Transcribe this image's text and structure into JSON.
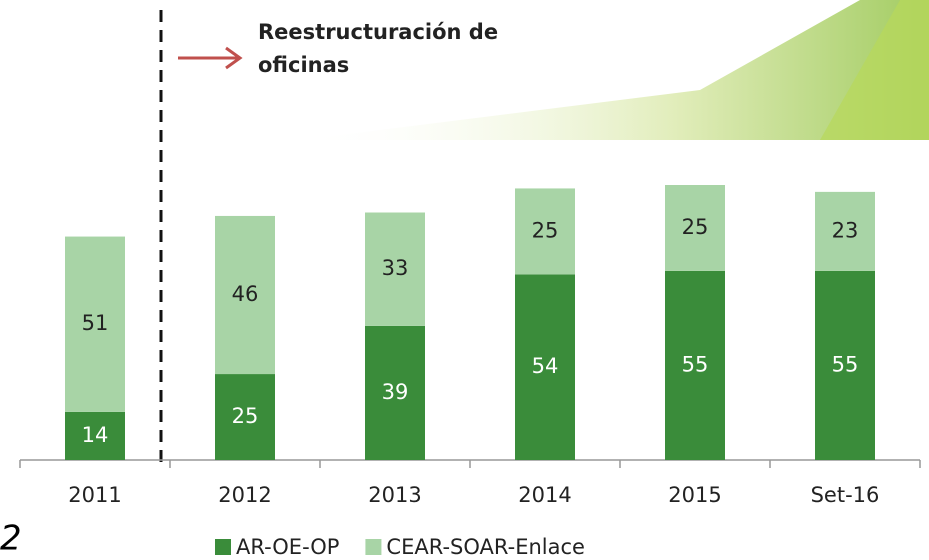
{
  "chart_data": {
    "type": "stacked_bar",
    "annotation": "Reestructuración de oficinas",
    "page_number": "2",
    "categories": [
      "2011",
      "2012",
      "2013",
      "2014",
      "2015",
      "Set-16"
    ],
    "series": [
      {
        "name": "AR-OE-OP",
        "color": "#3a8c3a",
        "values": [
          14,
          25,
          39,
          54,
          55,
          55
        ]
      },
      {
        "name": "CEAR-SOAR-Enlace",
        "color": "#a8d4a6",
        "values": [
          51,
          46,
          33,
          25,
          25,
          23
        ]
      }
    ]
  }
}
